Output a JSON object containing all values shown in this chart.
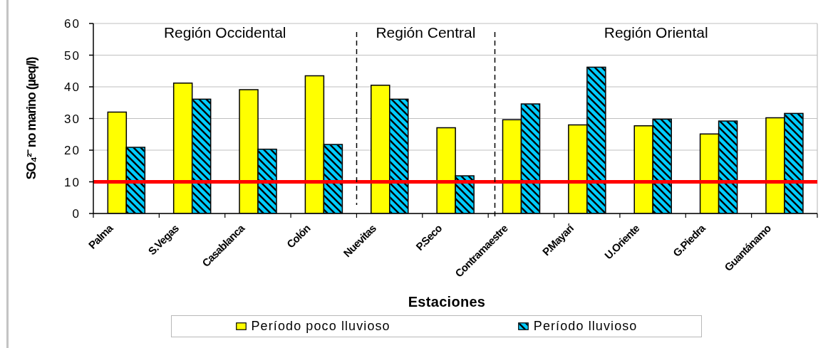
{
  "chart_data": {
    "type": "bar",
    "xlabel": "Estaciones",
    "ylabel": "SO₄²⁻ no marino (µeq/l)",
    "categories": [
      "Palma",
      "S.Vegas",
      "Casablanca",
      "Colón",
      "Nuevitas",
      "P.Seco",
      "Contramaestre",
      "P.Mayarí",
      "U.Oriente",
      "G.Piedra",
      "Guantánamo"
    ],
    "series": [
      {
        "name": "Período poco lluvioso",
        "color": "#ffff00",
        "values": [
          32,
          41.2,
          39.1,
          43.5,
          40.5,
          27.1,
          29.6,
          28,
          27.7,
          25.1,
          30.2
        ]
      },
      {
        "name": "Período lluvioso",
        "color": "#00ccff",
        "values": [
          20.9,
          36.1,
          20.3,
          21.8,
          36.1,
          11.9,
          34.6,
          46.2,
          29.8,
          29.2,
          31.6
        ]
      }
    ],
    "ylim": [
      0,
      60
    ],
    "yticks": [
      0,
      10,
      20,
      30,
      40,
      50,
      60
    ],
    "grid": "y",
    "legend": "bottom",
    "ref_lines": [
      {
        "axis": "y",
        "value": 10,
        "color": "#ff0000"
      }
    ],
    "annotations": [
      "Región Occidental",
      "Región Central",
      "Región Oriental"
    ]
  }
}
